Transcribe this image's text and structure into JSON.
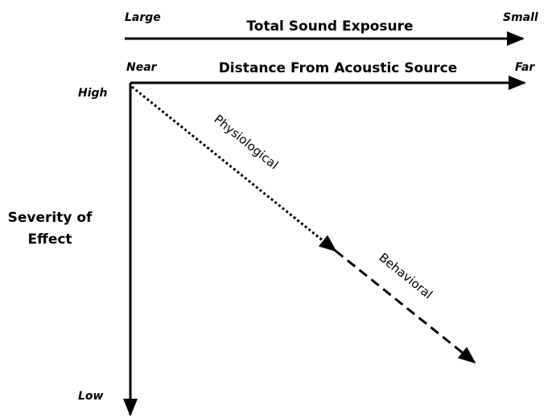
{
  "top_axis": {
    "left": "Large",
    "title": "Total Sound Exposure",
    "right": "Small"
  },
  "second_axis": {
    "left": "Near",
    "title": "Distance From Acoustic Source",
    "right": "Far"
  },
  "vertical_axis": {
    "top": "High",
    "title": [
      "Severity of",
      "Effect"
    ],
    "bottom": "Low"
  },
  "curves": {
    "first": "Physiological",
    "second": "Behavioral"
  }
}
